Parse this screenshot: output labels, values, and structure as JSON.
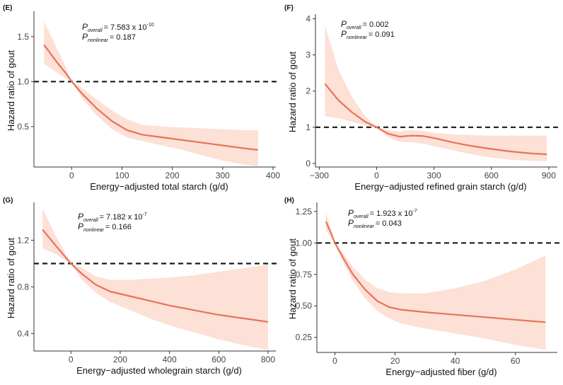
{
  "chart_data": [
    {
      "type": "line",
      "panel": "(E)",
      "xlabel": "Energy−adjusted total starch (g/d)",
      "ylabel": "Hazard ratio of gout",
      "xlim": [
        -75,
        400
      ],
      "ylim": [
        0.05,
        1.75
      ],
      "xticks": [
        0,
        100,
        200,
        300,
        400
      ],
      "yticks": [
        0.5,
        1.0,
        1.5
      ],
      "xtick_labels": [
        "0",
        "100",
        "200",
        "300",
        "400"
      ],
      "ytick_labels": [
        "0.5",
        "1.0",
        "1.5"
      ],
      "reference_line": 1.0,
      "p_overall_value": "= 7.583 x 10",
      "p_overall_exp": "-10",
      "p_nonlinear_value": "= 0.187",
      "x": [
        -55,
        -30,
        -10,
        0,
        20,
        50,
        80,
        110,
        140,
        180,
        220,
        260,
        300,
        340,
        370
      ],
      "y": [
        1.41,
        1.22,
        1.08,
        1.0,
        0.87,
        0.7,
        0.56,
        0.46,
        0.41,
        0.38,
        0.35,
        0.32,
        0.29,
        0.26,
        0.24
      ],
      "lower": [
        1.2,
        1.1,
        1.03,
        1.0,
        0.82,
        0.62,
        0.47,
        0.38,
        0.34,
        0.29,
        0.24,
        0.18,
        0.12,
        0.08,
        0.06
      ],
      "upper": [
        1.67,
        1.38,
        1.14,
        1.0,
        0.93,
        0.8,
        0.68,
        0.58,
        0.52,
        0.5,
        0.49,
        0.48,
        0.47,
        0.46,
        0.46
      ]
    },
    {
      "type": "line",
      "panel": "(F)",
      "xlabel": "Energy−adjusted refined grain starch (g/d)",
      "ylabel": "Hazard ratio of gout",
      "xlim": [
        -320,
        930
      ],
      "ylim": [
        -0.1,
        4.05
      ],
      "xticks": [
        -300,
        0,
        300,
        600,
        900
      ],
      "yticks": [
        0,
        1,
        2,
        3,
        4
      ],
      "xtick_labels": [
        "−300",
        "0",
        "300",
        "600",
        "900"
      ],
      "ytick_labels": [
        "0",
        "1",
        "2",
        "3",
        "4"
      ],
      "reference_line": 1.0,
      "p_overall_value": "= 0.002",
      "p_nonlinear_value": "= 0.091",
      "x": [
        -270,
        -200,
        -130,
        -60,
        0,
        60,
        120,
        180,
        240,
        300,
        400,
        500,
        600,
        700,
        800,
        890
      ],
      "y": [
        2.2,
        1.75,
        1.42,
        1.15,
        1.0,
        0.82,
        0.74,
        0.77,
        0.76,
        0.7,
        0.58,
        0.48,
        0.4,
        0.33,
        0.28,
        0.25
      ],
      "lower": [
        1.3,
        1.25,
        1.15,
        1.05,
        1.0,
        0.72,
        0.6,
        0.58,
        0.55,
        0.48,
        0.36,
        0.25,
        0.16,
        0.1,
        0.07,
        0.06
      ],
      "upper": [
        3.8,
        2.6,
        1.85,
        1.3,
        1.0,
        0.92,
        0.88,
        0.92,
        0.9,
        0.85,
        0.8,
        0.78,
        0.77,
        0.77,
        0.77,
        0.77
      ]
    },
    {
      "type": "line",
      "panel": "(G)",
      "xlabel": "Energy−adjusted wholegrain starch (g/d)",
      "ylabel": "Hazard ratio of gout",
      "xlim": [
        -150,
        820
      ],
      "ylim": [
        0.25,
        1.5
      ],
      "xticks": [
        0,
        200,
        400,
        600,
        800
      ],
      "yticks": [
        0.4,
        0.8,
        1.2
      ],
      "xtick_labels": [
        "0",
        "200",
        "400",
        "600",
        "800"
      ],
      "ytick_labels": [
        "0.4",
        "0.8",
        "1.2"
      ],
      "reference_line": 1.0,
      "p_overall_value": "= 7.182 x 10",
      "p_overall_exp": "-7",
      "p_nonlinear_value": "= 0.166",
      "x": [
        -115,
        -60,
        -20,
        0,
        40,
        100,
        160,
        240,
        320,
        400,
        500,
        600,
        700,
        800
      ],
      "y": [
        1.29,
        1.15,
        1.05,
        1.0,
        0.92,
        0.82,
        0.76,
        0.72,
        0.68,
        0.64,
        0.6,
        0.56,
        0.53,
        0.5
      ],
      "lower": [
        1.13,
        1.08,
        1.02,
        1.0,
        0.87,
        0.75,
        0.67,
        0.6,
        0.53,
        0.47,
        0.41,
        0.35,
        0.3,
        0.26
      ],
      "upper": [
        1.47,
        1.23,
        1.08,
        1.0,
        0.97,
        0.89,
        0.86,
        0.86,
        0.87,
        0.88,
        0.9,
        0.93,
        0.96,
        0.99
      ]
    },
    {
      "type": "line",
      "panel": "(H)",
      "xlabel": "Energy−adjusted fiber (g/d)",
      "ylabel": "Hazard ratio of gout",
      "xlim": [
        -6,
        73
      ],
      "ylim": [
        0.13,
        1.3
      ],
      "xticks": [
        0,
        20,
        40,
        60
      ],
      "yticks": [
        0.25,
        0.5,
        0.75,
        1.0,
        1.25
      ],
      "xtick_labels": [
        "0",
        "20",
        "40",
        "60"
      ],
      "ytick_labels": [
        "0.25",
        "0.50",
        "0.75",
        "1.00",
        "1.25"
      ],
      "reference_line": 1.0,
      "p_overall_value": "= 1.923 x 10",
      "p_overall_exp": "-7",
      "p_nonlinear_value": "= 0.043",
      "x": [
        -3,
        -1,
        0,
        3,
        6,
        10,
        14,
        18,
        22,
        30,
        40,
        50,
        60,
        70
      ],
      "y": [
        1.17,
        1.06,
        1.0,
        0.87,
        0.75,
        0.63,
        0.54,
        0.49,
        0.47,
        0.45,
        0.43,
        0.41,
        0.39,
        0.37
      ],
      "lower": [
        1.1,
        1.03,
        1.0,
        0.83,
        0.7,
        0.56,
        0.46,
        0.4,
        0.36,
        0.32,
        0.28,
        0.24,
        0.19,
        0.15
      ],
      "upper": [
        1.24,
        1.09,
        1.0,
        0.91,
        0.81,
        0.71,
        0.64,
        0.61,
        0.6,
        0.6,
        0.64,
        0.7,
        0.79,
        0.9
      ]
    }
  ],
  "labels": {
    "p_overall_P": "P",
    "p_overall_sub": "overall",
    "p_nonlinear_P": "P",
    "p_nonlinear_sub": "nonlinear"
  },
  "colors": {
    "curve": "#e7735a",
    "band": "#fde0d6",
    "refline": "#1a1a1a",
    "axis": "#333333"
  }
}
